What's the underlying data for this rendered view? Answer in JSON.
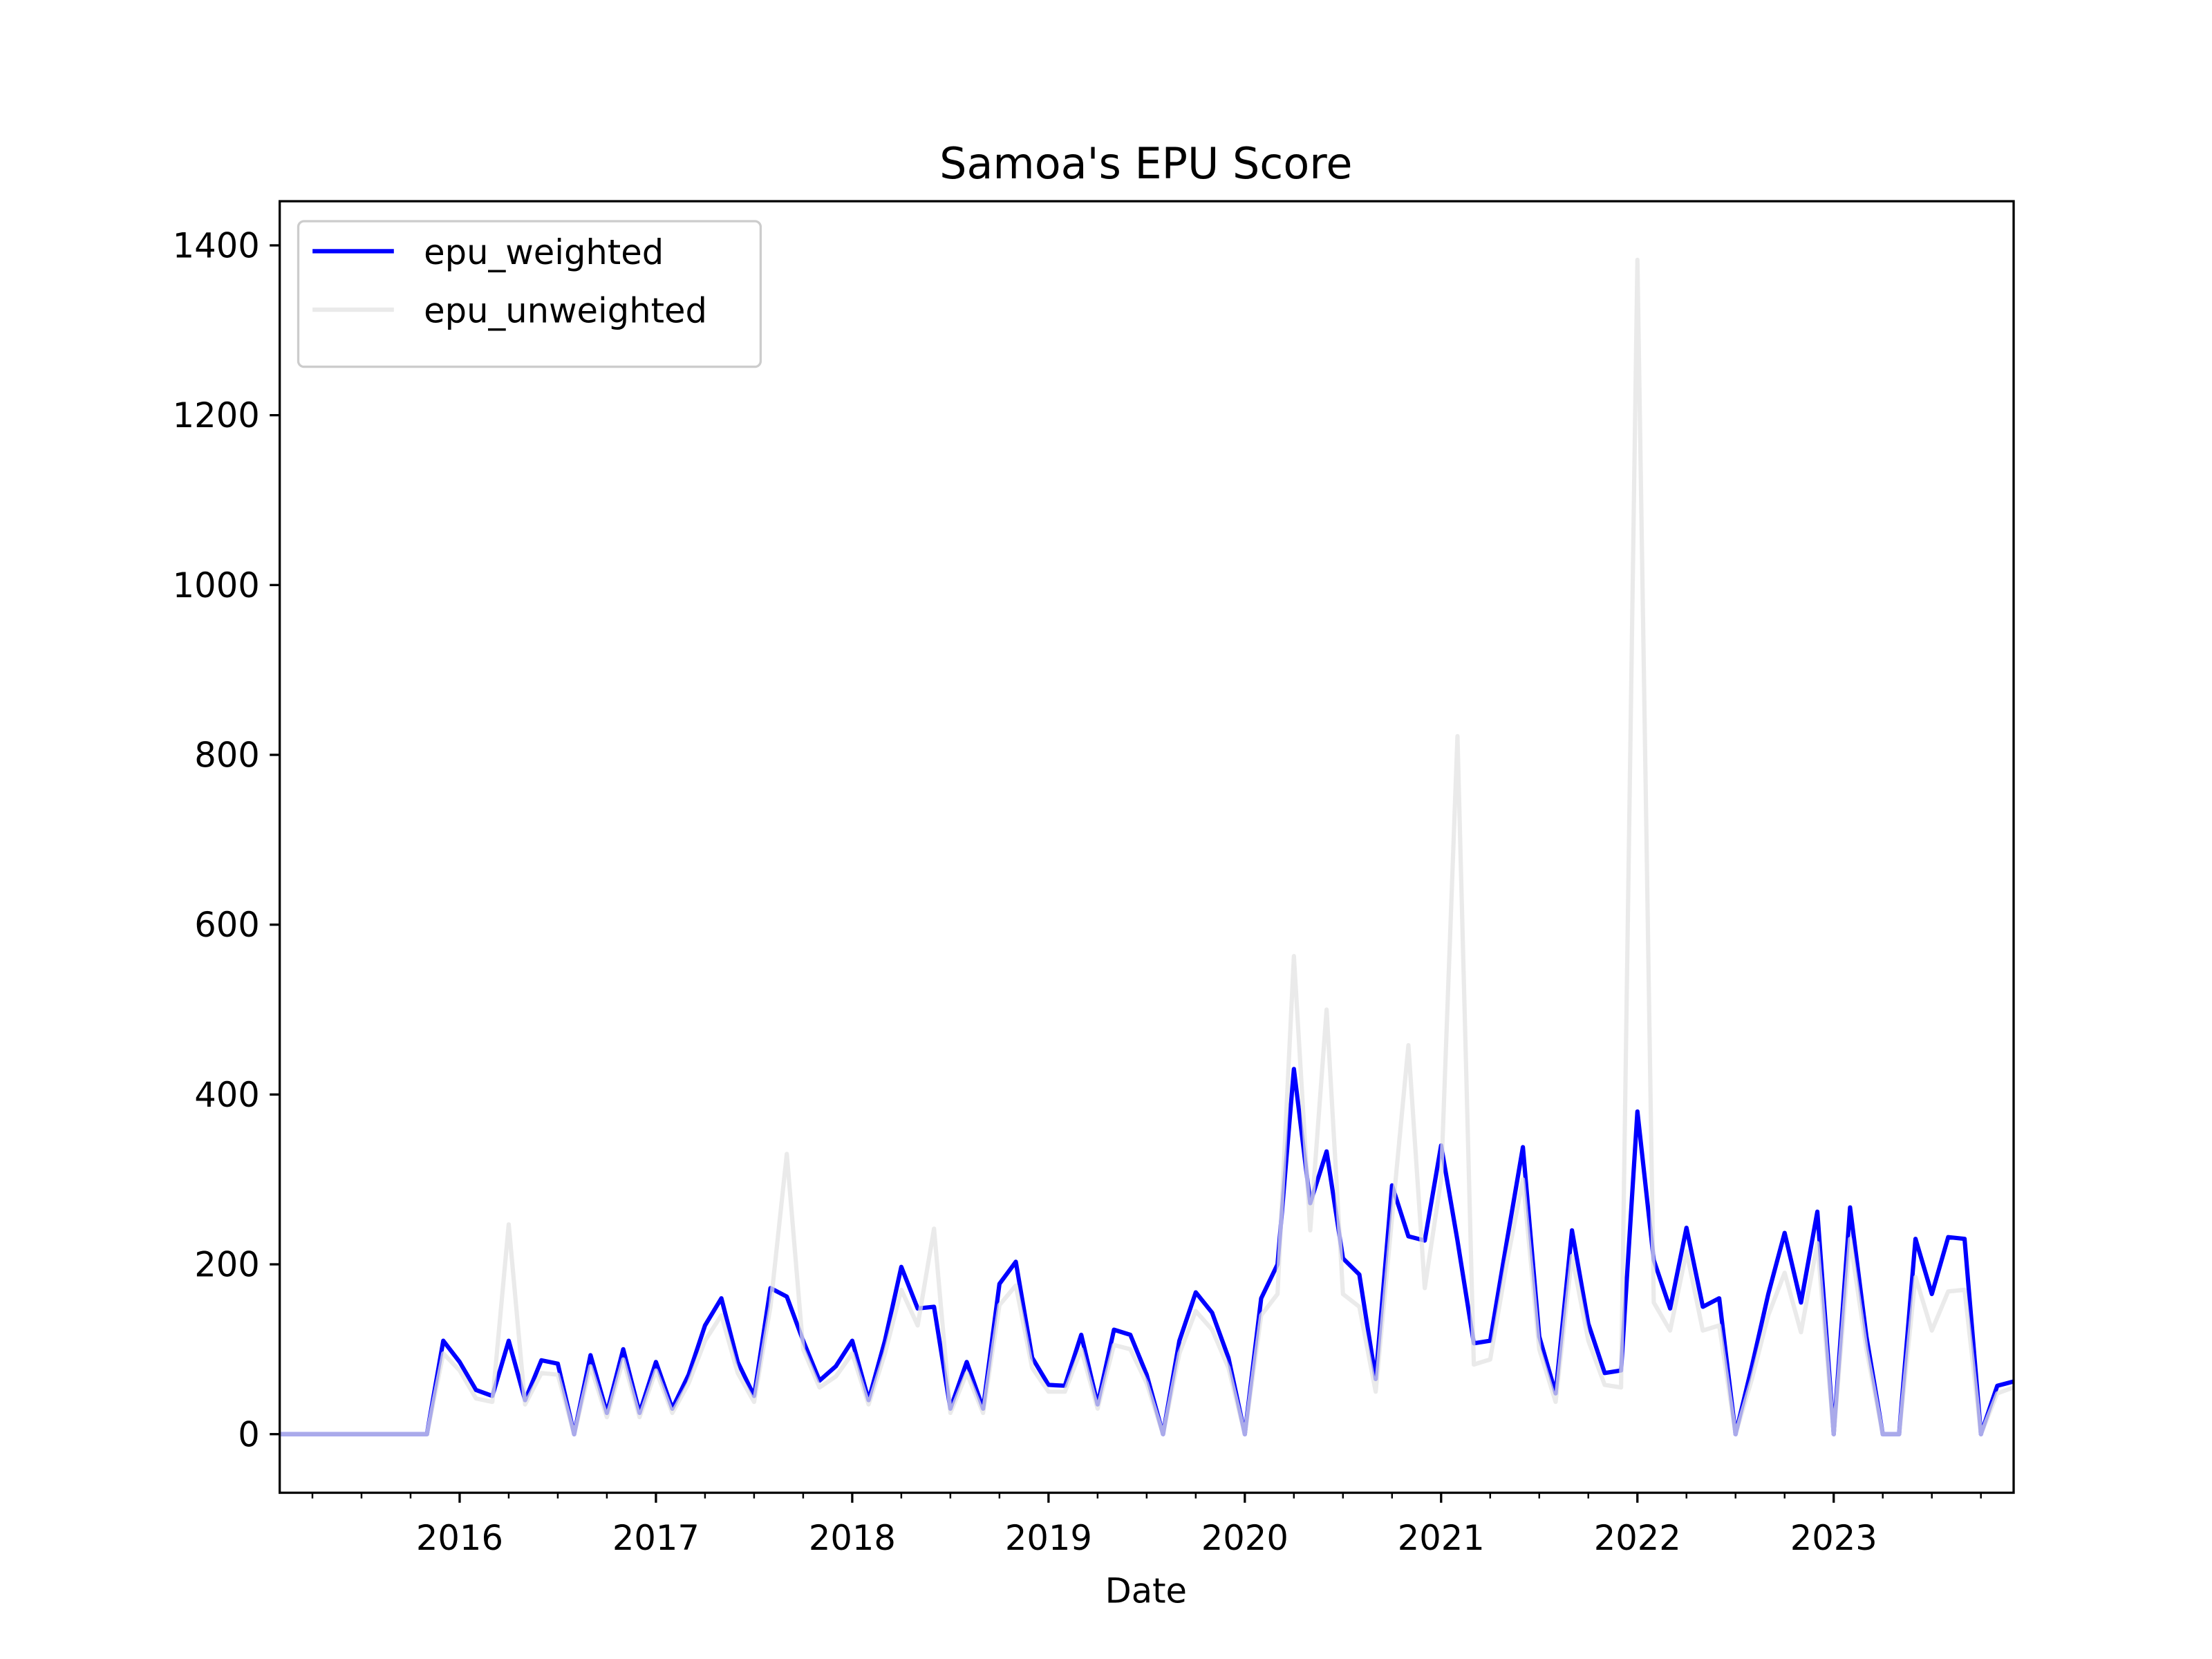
{
  "chart_data": {
    "type": "line",
    "title": "Samoa's EPU Score",
    "xlabel": "Date",
    "x": [
      "2015-02",
      "2015-03",
      "2015-04",
      "2015-05",
      "2015-06",
      "2015-07",
      "2015-08",
      "2015-09",
      "2015-10",
      "2015-11",
      "2015-12",
      "2016-01",
      "2016-02",
      "2016-03",
      "2016-04",
      "2016-05",
      "2016-06",
      "2016-07",
      "2016-08",
      "2016-09",
      "2016-10",
      "2016-11",
      "2016-12",
      "2017-01",
      "2017-02",
      "2017-03",
      "2017-04",
      "2017-05",
      "2017-06",
      "2017-07",
      "2017-08",
      "2017-09",
      "2017-10",
      "2017-11",
      "2017-12",
      "2018-01",
      "2018-02",
      "2018-03",
      "2018-04",
      "2018-05",
      "2018-06",
      "2018-07",
      "2018-08",
      "2018-09",
      "2018-10",
      "2018-11",
      "2018-12",
      "2019-01",
      "2019-02",
      "2019-03",
      "2019-04",
      "2019-05",
      "2019-06",
      "2019-07",
      "2019-08",
      "2019-09",
      "2019-10",
      "2019-11",
      "2019-12",
      "2020-01",
      "2020-02",
      "2020-03",
      "2020-04",
      "2020-05",
      "2020-06",
      "2020-07",
      "2020-08",
      "2020-09",
      "2020-10",
      "2020-11",
      "2020-12",
      "2021-01",
      "2021-02",
      "2021-03",
      "2021-04",
      "2021-05",
      "2021-06",
      "2021-07",
      "2021-08",
      "2021-09",
      "2021-10",
      "2021-11",
      "2021-12",
      "2022-01",
      "2022-02",
      "2022-03",
      "2022-04",
      "2022-05",
      "2022-06",
      "2022-07",
      "2022-08",
      "2022-09",
      "2022-10",
      "2022-11",
      "2022-12",
      "2023-01",
      "2023-02",
      "2023-03",
      "2023-04",
      "2023-05",
      "2023-06",
      "2023-07",
      "2023-08",
      "2023-09",
      "2023-10",
      "2023-11",
      "2023-12"
    ],
    "series": [
      {
        "name": "epu_weighted",
        "color": "#0000ff",
        "values": [
          0,
          0,
          0,
          0,
          0,
          0,
          0,
          0,
          0,
          0,
          110,
          85,
          52,
          45,
          110,
          40,
          87,
          83,
          0,
          93,
          25,
          100,
          25,
          85,
          30,
          70,
          128,
          160,
          85,
          45,
          172,
          162,
          110,
          63,
          80,
          110,
          40,
          110,
          197,
          148,
          150,
          30,
          85,
          30,
          177,
          203,
          90,
          58,
          57,
          117,
          35,
          123,
          117,
          70,
          0,
          110,
          167,
          143,
          90,
          0,
          160,
          200,
          430,
          272,
          333,
          207,
          188,
          65,
          293,
          233,
          228,
          340,
          228,
          107,
          110,
          225,
          338,
          115,
          48,
          240,
          130,
          72,
          75,
          380,
          205,
          148,
          243,
          150,
          160,
          0,
          80,
          165,
          237,
          155,
          262,
          0,
          267,
          115,
          0,
          0,
          230,
          165,
          232,
          230,
          0,
          57,
          62
        ]
      },
      {
        "name": "epu_unweighted",
        "color": "#e3e3e3",
        "values": [
          0,
          0,
          0,
          0,
          0,
          0,
          0,
          0,
          0,
          0,
          95,
          75,
          42,
          38,
          247,
          35,
          72,
          70,
          0,
          80,
          20,
          88,
          20,
          75,
          25,
          60,
          110,
          140,
          72,
          38,
          150,
          330,
          100,
          55,
          68,
          95,
          35,
          95,
          170,
          128,
          242,
          25,
          72,
          25,
          152,
          175,
          78,
          50,
          50,
          100,
          30,
          105,
          100,
          60,
          0,
          95,
          145,
          123,
          78,
          0,
          140,
          165,
          563,
          240,
          500,
          165,
          150,
          50,
          255,
          458,
          172,
          300,
          822,
          82,
          88,
          200,
          300,
          100,
          38,
          210,
          110,
          58,
          55,
          1383,
          155,
          122,
          215,
          122,
          128,
          0,
          65,
          140,
          190,
          120,
          225,
          0,
          230,
          100,
          0,
          0,
          185,
          122,
          168,
          170,
          0,
          48,
          55
        ]
      }
    ],
    "xlim": [
      "2015-02",
      "2023-12"
    ],
    "xticks": [
      {
        "value": "2016-01",
        "label": "2016"
      },
      {
        "value": "2017-01",
        "label": "2017"
      },
      {
        "value": "2018-01",
        "label": "2018"
      },
      {
        "value": "2019-01",
        "label": "2019"
      },
      {
        "value": "2020-01",
        "label": "2020"
      },
      {
        "value": "2021-01",
        "label": "2021"
      },
      {
        "value": "2022-01",
        "label": "2022"
      },
      {
        "value": "2023-01",
        "label": "2023"
      }
    ],
    "xminorticks": [
      "2015-04",
      "2015-07",
      "2015-10",
      "2016-04",
      "2016-07",
      "2016-10",
      "2017-04",
      "2017-07",
      "2017-10",
      "2018-04",
      "2018-07",
      "2018-10",
      "2019-04",
      "2019-07",
      "2019-10",
      "2020-04",
      "2020-07",
      "2020-10",
      "2021-04",
      "2021-07",
      "2021-10",
      "2022-04",
      "2022-07",
      "2022-10",
      "2023-04",
      "2023-07",
      "2023-10"
    ],
    "ylim": [
      -69,
      1452
    ],
    "yticks": [
      0,
      200,
      400,
      600,
      800,
      1000,
      1200,
      1400
    ],
    "legend": "upper left",
    "grid": false
  }
}
